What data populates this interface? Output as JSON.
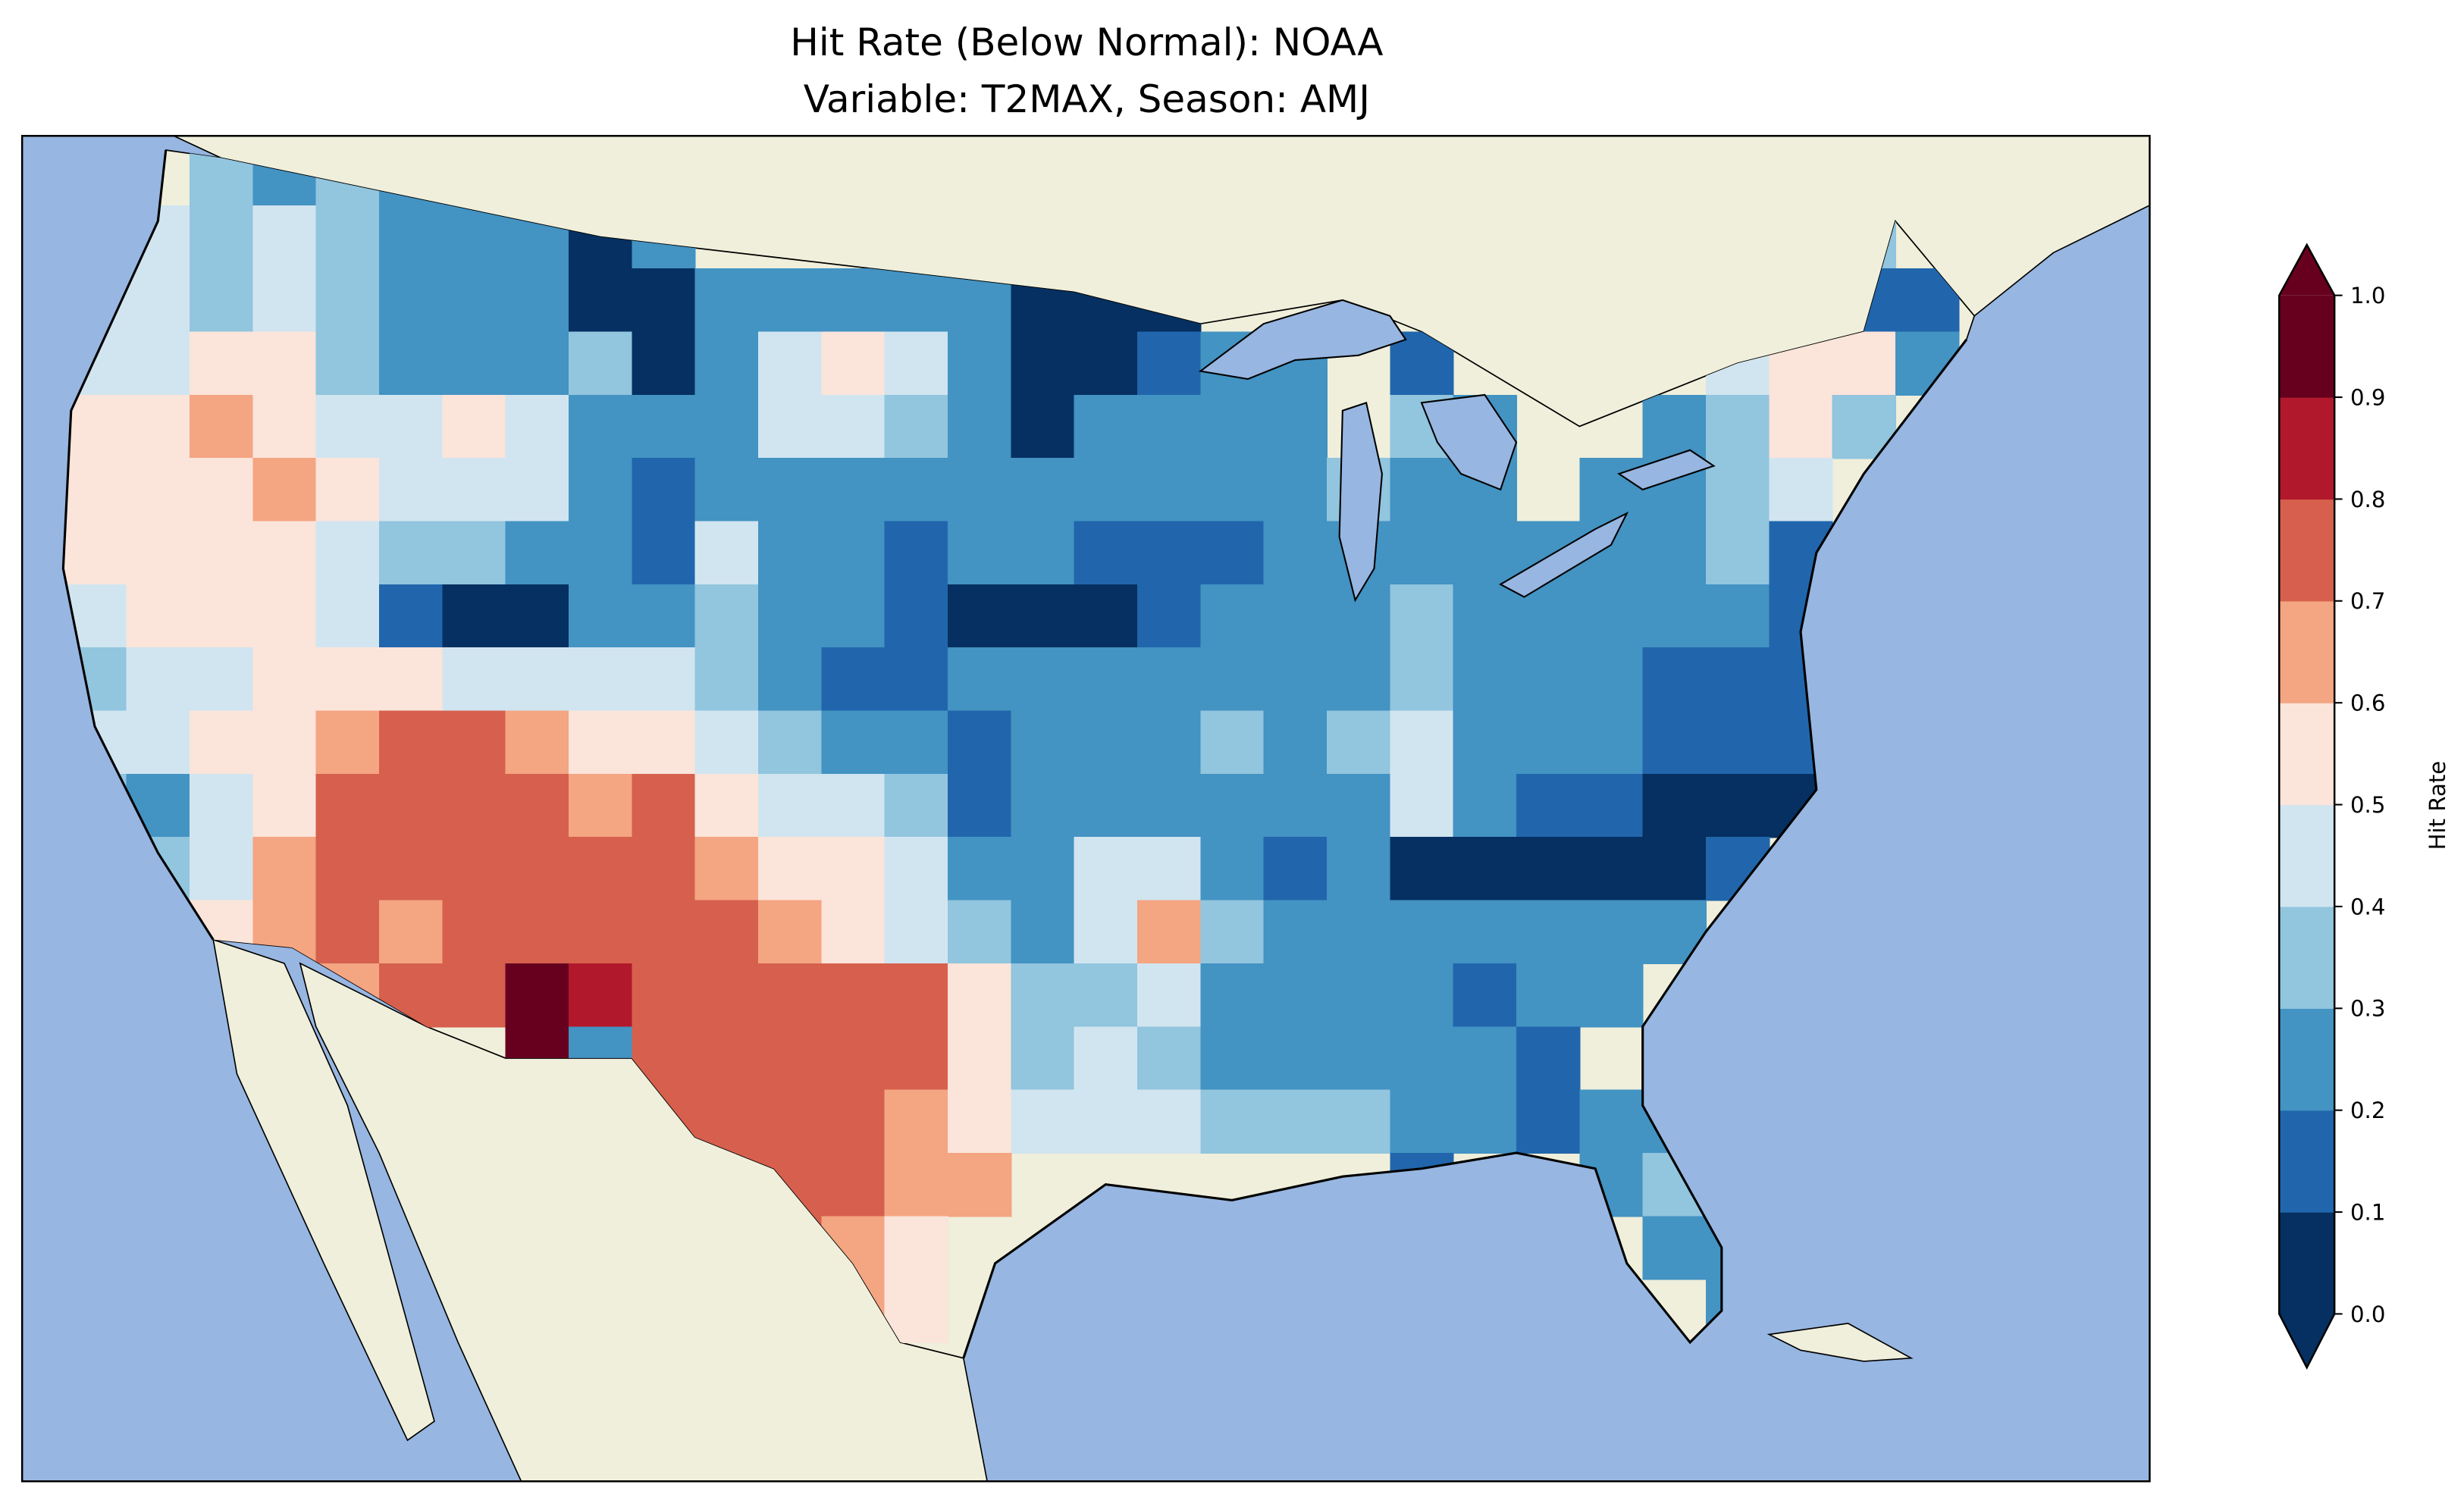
{
  "chart_data": {
    "type": "heatmap",
    "title_line1": "Hit Rate (Below Normal): NOAA",
    "title_line2": "Variable: T2MAX, Season: AMJ",
    "colorbar": {
      "label": "Hit Rate",
      "range": [
        0.0,
        1.0
      ],
      "extend": "both",
      "ticks": [
        "0.0",
        "0.1",
        "0.2",
        "0.3",
        "0.4",
        "0.5",
        "0.6",
        "0.7",
        "0.8",
        "0.9",
        "1.0"
      ],
      "bin_colors": [
        "#053061",
        "#2166ac",
        "#4393c3",
        "#92c5de",
        "#d1e5f0",
        "#fbe4da",
        "#f4a582",
        "#d6604d",
        "#b2182b",
        "#67001f"
      ]
    },
    "map_colors": {
      "ocean": "#97b6e1",
      "land": "#efefdb",
      "lakes": "#97b6e1"
    },
    "grid_note_bins": "each char = hit-rate bin index (0 => 0.0-0.1 ... 9 => 0.9-1.0), '.' = no data",
    "grid": [
      "..32322.......................",
      "5434322202..................3.",
      "443432220022222000..........11",
      "44553222302454200122.1....4552",
      "55654454222443202222.32..2353.",
      "55565444212222222222322.2234..",
      "5555433221422122111222222231..",
      "4555410022322100012223222221..",
      "3445554444321122222223222111..",
      "4455677655432212223234222111..",
      "3245777767544312222224211000..",
      ".34677777765542244212000001...",
      "..567677777654324632222222....",
      "....677987777753342222122.....",
      ".......92777775343222221......",
      ".........77776544433322122....",
      "..........77766......1..23....",
      "...........765...........22...",
      "............65............22..."
    ]
  }
}
